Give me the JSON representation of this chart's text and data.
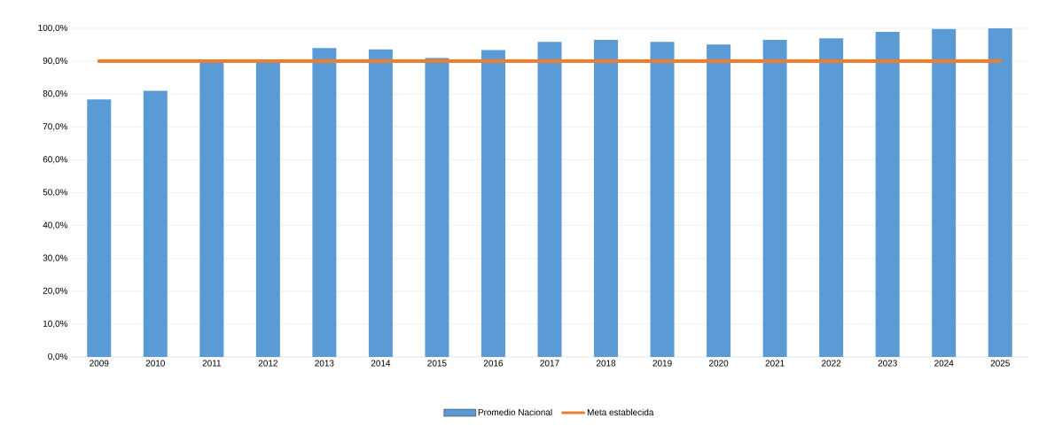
{
  "chart_data": {
    "type": "bar",
    "categories": [
      "2009",
      "2010",
      "2011",
      "2012",
      "2013",
      "2014",
      "2015",
      "2016",
      "2017",
      "2018",
      "2019",
      "2020",
      "2021",
      "2022",
      "2023",
      "2024",
      "2025"
    ],
    "series": [
      {
        "name": "Promedio Nacional",
        "color": "#5b9bd5",
        "values": [
          78.4,
          81.0,
          90.0,
          90.0,
          94.0,
          93.6,
          91.0,
          93.4,
          95.9,
          96.5,
          95.9,
          95.1,
          96.5,
          97.0,
          98.9,
          99.8,
          100.0
        ]
      },
      {
        "name": "Meta establecida",
        "type": "line",
        "color": "#ed7d31",
        "values": [
          90,
          90,
          90,
          90,
          90,
          90,
          90,
          90,
          90,
          90,
          90,
          90,
          90,
          90,
          90,
          90,
          90
        ]
      }
    ],
    "ylim": [
      0,
      100
    ],
    "yticks": [
      {
        "value": 0,
        "label": "0,0%"
      },
      {
        "value": 10,
        "label": "10,0%"
      },
      {
        "value": 20,
        "label": "20,0%"
      },
      {
        "value": 30,
        "label": "30,0%"
      },
      {
        "value": 40,
        "label": "40,0%"
      },
      {
        "value": 50,
        "label": "50,0%"
      },
      {
        "value": 60,
        "label": "60,0%"
      },
      {
        "value": 70,
        "label": "70,0%"
      },
      {
        "value": 80,
        "label": "80,0%"
      },
      {
        "value": 90,
        "label": "90,0%"
      },
      {
        "value": 100,
        "label": "100,0%"
      }
    ],
    "grid": "y",
    "legend": "bottom",
    "marker": "none"
  }
}
